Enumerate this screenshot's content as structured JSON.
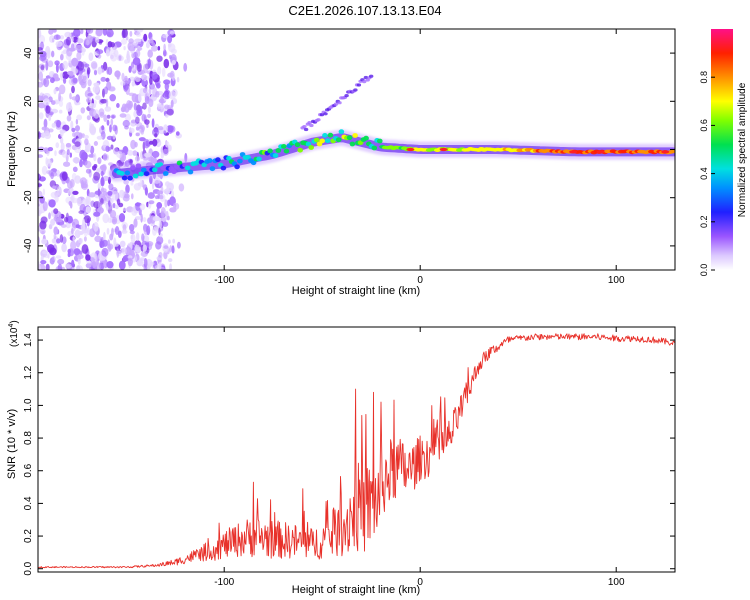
{
  "title": "C2E1.2026.107.13.13.E04",
  "colors": {
    "snr_line": "#e8312a",
    "sweep_base": "#7a2ee8",
    "sweep_mid": "#1a3cff",
    "sweep_hot": "#ff2020"
  },
  "chart_data": [
    {
      "type": "heatmap",
      "title": "C2E1.2026.107.13.13.E04",
      "xlabel": "Height of straight line (km)",
      "ylabel": "Frequency (Hz)",
      "xlim": [
        -195,
        130
      ],
      "ylim": [
        -50,
        50
      ],
      "x_ticks": [
        -100,
        0,
        100
      ],
      "y_ticks": [
        -40,
        -20,
        0,
        20,
        40
      ],
      "x_tick_labels": [
        "-100",
        "0",
        "100"
      ],
      "y_tick_labels": [
        "-40",
        "-20",
        "0",
        "20",
        "40"
      ],
      "noise_region_x": [
        -195,
        -125
      ],
      "ridge": {
        "x": [
          -155,
          -130,
          -100,
          -75,
          -55,
          -40,
          -30,
          -20,
          0,
          40,
          80,
          110,
          130
        ],
        "y": [
          -10,
          -8,
          -6,
          -2,
          3,
          5,
          3,
          1,
          0,
          0,
          -1,
          -1,
          -1
        ],
        "amplitude": [
          0.3,
          0.35,
          0.45,
          0.5,
          0.55,
          0.6,
          0.6,
          0.62,
          0.7,
          0.75,
          0.95,
          0.9,
          0.85
        ]
      },
      "branch": {
        "x": [
          -60,
          -25
        ],
        "y": [
          8,
          31
        ]
      },
      "colorbar": {
        "label": "Normalized spectral amplitude",
        "range": [
          0.0,
          1.0
        ],
        "ticks": [
          0.0,
          0.2,
          0.4,
          0.6,
          0.8
        ],
        "tick_labels": [
          "0.0",
          "0.2",
          "0.4",
          "0.6",
          "0.8"
        ]
      }
    },
    {
      "type": "line",
      "xlabel": "Height of straight line (km)",
      "ylabel": "SNR (10 * v/v)",
      "y_scale_label": "(x10",
      "y_scale_exp": "4",
      "y_scale_close": ")",
      "xlim": [
        -195,
        130
      ],
      "ylim": [
        -0.02,
        1.48
      ],
      "x_ticks": [
        -100,
        0,
        100
      ],
      "x_tick_labels": [
        "-100",
        "0",
        "100"
      ],
      "y_ticks": [
        0.0,
        0.2,
        0.4,
        0.6,
        0.8,
        1.0,
        1.2,
        1.4
      ],
      "y_tick_labels": [
        "0.0",
        "0.2",
        "0.4",
        "0.6",
        "0.8",
        "1.0",
        "1.2",
        "1.4"
      ],
      "series": [
        {
          "name": "SNR",
          "x": [
            -195,
            -170,
            -150,
            -135,
            -125,
            -115,
            -105,
            -95,
            -85,
            -75,
            -65,
            -55,
            -45,
            -38,
            -33,
            -28,
            -22,
            -18,
            -12,
            -5,
            0,
            5,
            10,
            15,
            20,
            25,
            30,
            35,
            40,
            45,
            50,
            60,
            70,
            80,
            90,
            100,
            110,
            120,
            130
          ],
          "mean": [
            0.01,
            0.01,
            0.01,
            0.02,
            0.04,
            0.08,
            0.12,
            0.17,
            0.2,
            0.18,
            0.17,
            0.15,
            0.2,
            0.27,
            0.38,
            0.36,
            0.42,
            0.56,
            0.62,
            0.6,
            0.68,
            0.7,
            0.75,
            0.8,
            0.95,
            1.1,
            1.25,
            1.32,
            1.36,
            1.4,
            1.41,
            1.42,
            1.42,
            1.42,
            1.42,
            1.41,
            1.41,
            1.4,
            1.38
          ],
          "spread": [
            0.004,
            0.004,
            0.005,
            0.008,
            0.02,
            0.04,
            0.07,
            0.1,
            0.13,
            0.12,
            0.11,
            0.1,
            0.13,
            0.2,
            0.28,
            0.28,
            0.25,
            0.22,
            0.2,
            0.16,
            0.14,
            0.14,
            0.14,
            0.12,
            0.1,
            0.08,
            0.05,
            0.04,
            0.03,
            0.025,
            0.02,
            0.02,
            0.02,
            0.02,
            0.02,
            0.02,
            0.02,
            0.02,
            0.02
          ],
          "peaks": [
            {
              "x": -33,
              "y": 1.1
            },
            {
              "x": -24,
              "y": 1.08
            },
            {
              "x": -20,
              "y": 1.02
            },
            {
              "x": -85,
              "y": 0.53
            },
            {
              "x": -60,
              "y": 0.49
            }
          ]
        }
      ]
    }
  ]
}
